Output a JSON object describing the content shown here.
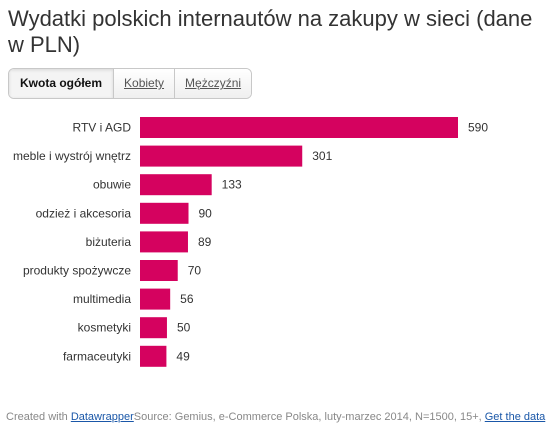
{
  "title": "Wydatki polskich internautów na zakupy w sieci (dane w PLN)",
  "tabs": [
    {
      "label": "Kwota ogółem",
      "active": true
    },
    {
      "label": "Kobiety",
      "active": false
    },
    {
      "label": "Mężczyźni",
      "active": false
    }
  ],
  "footer": {
    "created_with": "Created with ",
    "datawrapper": "Datawrapper",
    "source": "Source: Gemius, e-Commerce Polska, luty-marzec 2014, N=1500, 15+, ",
    "get_data": "Get the data"
  },
  "colors": {
    "bar": "#d5025f",
    "text": "#333333"
  },
  "chart_data": {
    "type": "bar",
    "orientation": "horizontal",
    "categories": [
      "RTV i AGD",
      "meble i wystrój wnętrz",
      "obuwie",
      "odzież i akcesoria",
      "biżuteria",
      "produkty spożywcze",
      "multimedia",
      "kosmetyki",
      "farmaceutyki"
    ],
    "values": [
      590,
      301,
      133,
      90,
      89,
      70,
      56,
      50,
      49
    ],
    "title": "Wydatki polskich internautów na zakupy w sieci (dane w PLN)",
    "xlabel": "",
    "ylabel": "",
    "xlim": [
      0,
      590
    ],
    "grid": false,
    "value_labels": true
  }
}
